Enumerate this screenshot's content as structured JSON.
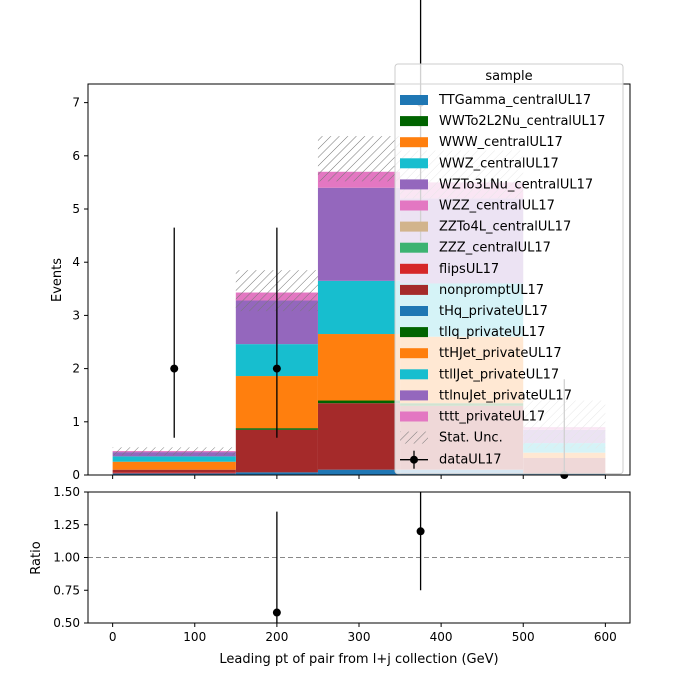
{
  "chart_data": {
    "type": "bar",
    "subtype": "stacked-histogram-with-ratio",
    "xlabel": "Leading pt of pair from l+j collection (GeV)",
    "ylabel_top": "Events",
    "ylabel_bottom": "Ratio",
    "xlim": [
      -30,
      630
    ],
    "ylim_top": [
      0,
      7.35
    ],
    "ylim_bottom": [
      0.5,
      1.5
    ],
    "x_ticks": [
      0,
      100,
      200,
      300,
      400,
      500,
      600
    ],
    "y_ticks_top": [
      0,
      1,
      2,
      3,
      4,
      5,
      6,
      7
    ],
    "y_ticks_bottom": [
      "0.50",
      "0.75",
      "1.00",
      "1.25",
      "1.50"
    ],
    "ratio_reference": 1.0,
    "bin_edges": [
      0,
      150,
      250,
      350,
      500,
      600
    ],
    "legend": {
      "title": "sample",
      "placement": "top-right"
    },
    "series": [
      {
        "name": "TTGamma_centralUL17",
        "color": "#1f77b4",
        "values": [
          0.03,
          0.05,
          0.1,
          0.1,
          0.02
        ]
      },
      {
        "name": "WWTo2L2Nu_centralUL17",
        "color": "#006400",
        "values": [
          0.0,
          0.0,
          0.0,
          0.0,
          0.0
        ]
      },
      {
        "name": "WWW_centralUL17",
        "color": "#ff7f0e",
        "values": [
          0.0,
          0.0,
          0.0,
          0.0,
          0.0
        ]
      },
      {
        "name": "WWZ_centralUL17",
        "color": "#17becf",
        "values": [
          0.0,
          0.0,
          0.0,
          0.0,
          0.0
        ]
      },
      {
        "name": "WZTo3LNu_centralUL17",
        "color": "#9467bd",
        "values": [
          0.0,
          0.0,
          0.0,
          0.0,
          0.0
        ]
      },
      {
        "name": "WZZ_centralUL17",
        "color": "#e377c2",
        "values": [
          0.0,
          0.0,
          0.0,
          0.0,
          0.0
        ]
      },
      {
        "name": "ZZTo4L_centralUL17",
        "color": "#d2b48c",
        "values": [
          0.0,
          0.0,
          0.0,
          0.0,
          0.0
        ]
      },
      {
        "name": "ZZZ_centralUL17",
        "color": "#3cb371",
        "values": [
          0.0,
          0.0,
          0.0,
          0.0,
          0.0
        ]
      },
      {
        "name": "flipsUL17",
        "color": "#d62728",
        "values": [
          0.02,
          0.0,
          0.0,
          0.0,
          0.0
        ]
      },
      {
        "name": "nonpromptUL17",
        "color": "#a52a2a",
        "values": [
          0.05,
          0.8,
          1.25,
          1.2,
          0.3
        ]
      },
      {
        "name": "tHq_privateUL17",
        "color": "#1f77b4",
        "values": [
          0.0,
          0.0,
          0.0,
          0.0,
          0.0
        ]
      },
      {
        "name": "tllq_privateUL17",
        "color": "#006400",
        "values": [
          0.0,
          0.03,
          0.05,
          0.05,
          0.0
        ]
      },
      {
        "name": "ttHJet_privateUL17",
        "color": "#ff7f0e",
        "values": [
          0.15,
          0.98,
          1.25,
          1.25,
          0.1
        ]
      },
      {
        "name": "ttllJet_privateUL17",
        "color": "#17becf",
        "values": [
          0.1,
          0.6,
          1.0,
          1.0,
          0.18
        ]
      },
      {
        "name": "ttlnuJet_privateUL17",
        "color": "#9467bd",
        "values": [
          0.08,
          0.82,
          1.75,
          1.6,
          0.25
        ]
      },
      {
        "name": "tttt_privateUL17",
        "color": "#e377c2",
        "values": [
          0.02,
          0.15,
          0.3,
          0.3,
          0.05
        ]
      }
    ],
    "stat_unc": {
      "name": "Stat. Unc.",
      "low": [
        0.37,
        3.08,
        5.52,
        5.2,
        0.5
      ],
      "high": [
        0.52,
        3.85,
        6.37,
        6.1,
        1.4
      ]
    },
    "data": {
      "name": "dataUL17",
      "x": [
        75,
        200,
        375,
        550
      ],
      "y": [
        2,
        2,
        7,
        0
      ],
      "err_low": [
        1.3,
        1.3,
        2.6,
        0
      ],
      "err_high": [
        2.65,
        2.65,
        3.7,
        1.8
      ]
    },
    "ratio": {
      "x": [
        200,
        375
      ],
      "y": [
        0.58,
        1.2
      ],
      "err_low": [
        0.36,
        0.45
      ],
      "err_high": [
        0.77,
        0.45
      ]
    }
  }
}
